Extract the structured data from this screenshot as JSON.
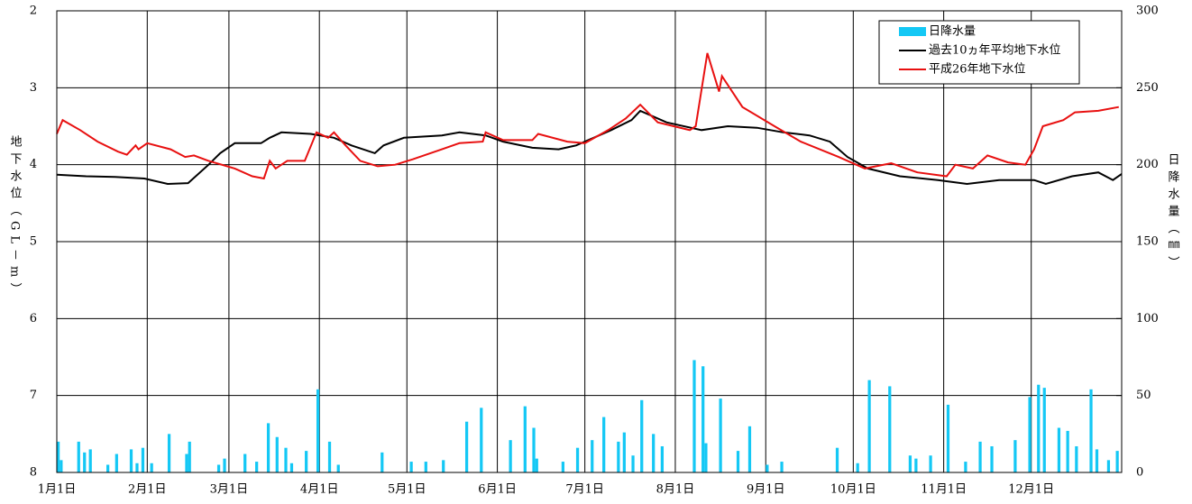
{
  "chart_data": {
    "type": "combo",
    "y_label": "地下水位（GL－m）",
    "y2_label": "日降水量（㎜）",
    "xlim": [
      0,
      365
    ],
    "xticks": [
      {
        "value": 0,
        "label": "1月1日"
      },
      {
        "value": 31,
        "label": "2月1日"
      },
      {
        "value": 59,
        "label": "3月1日"
      },
      {
        "value": 90,
        "label": "4月1日"
      },
      {
        "value": 120,
        "label": "5月1日"
      },
      {
        "value": 151,
        "label": "6月1日"
      },
      {
        "value": 181,
        "label": "7月1日"
      },
      {
        "value": 212,
        "label": "8月1日"
      },
      {
        "value": 243,
        "label": "9月1日"
      },
      {
        "value": 273,
        "label": "10月1日"
      },
      {
        "value": 304,
        "label": "11月1日"
      },
      {
        "value": 334,
        "label": "12月1日"
      }
    ],
    "ylim": [
      2,
      8
    ],
    "invert_y": true,
    "yticks": [
      2,
      3,
      4,
      5,
      6,
      7,
      8
    ],
    "y2lim": [
      0,
      300
    ],
    "y2ticks": [
      0,
      50,
      100,
      150,
      200,
      250,
      300
    ],
    "grid": true,
    "legend": "top-right",
    "series": [
      {
        "name": "日降水量",
        "type": "bar",
        "axis": "y2",
        "color": "#14c8f5",
        "x": [
          0,
          1,
          7,
          9,
          11,
          17,
          20,
          25,
          27,
          29,
          32,
          38,
          44,
          45,
          55,
          57,
          64,
          68,
          72,
          75,
          78,
          80,
          85,
          89,
          93,
          96,
          111,
          121,
          126,
          132,
          140,
          145,
          155,
          160,
          163,
          164,
          173,
          178,
          183,
          187,
          192,
          194,
          197,
          200,
          204,
          207,
          218,
          221,
          222,
          227,
          233,
          237,
          243,
          248,
          267,
          274,
          278,
          285,
          292,
          294,
          299,
          305,
          311,
          316,
          320,
          328,
          333,
          336,
          338,
          343,
          346,
          349,
          354,
          356,
          360,
          363
        ],
        "values": [
          20,
          8,
          20,
          13,
          15,
          5,
          12,
          15,
          6,
          16,
          6,
          25,
          12,
          20,
          5,
          9,
          12,
          7,
          32,
          23,
          16,
          6,
          14,
          54,
          20,
          5,
          13,
          7,
          7,
          8,
          33,
          42,
          21,
          43,
          29,
          9,
          7,
          16,
          21,
          36,
          20,
          26,
          11,
          47,
          25,
          17,
          73,
          69,
          19,
          48,
          14,
          30,
          5,
          7,
          16,
          6,
          60,
          56,
          11,
          9,
          11,
          44,
          7,
          20,
          17,
          21,
          49,
          57,
          55,
          29,
          27,
          17,
          54,
          15,
          8,
          14
        ]
      },
      {
        "name": "過去10ヵ年平均地下水位",
        "type": "line",
        "color": "#000000",
        "x": [
          0,
          10,
          20,
          30,
          38,
          45,
          52,
          56,
          61,
          70,
          73,
          77,
          87,
          95,
          101,
          109,
          112,
          119,
          132,
          138,
          147,
          153,
          163,
          172,
          178,
          184,
          190,
          197,
          200,
          209,
          221,
          230,
          240,
          249,
          258,
          265,
          271,
          278,
          289,
          302,
          312,
          323,
          335,
          339,
          348,
          357,
          362,
          365
        ],
        "values": [
          4.13,
          4.15,
          4.16,
          4.18,
          4.25,
          4.24,
          4.0,
          3.85,
          3.72,
          3.72,
          3.65,
          3.58,
          3.6,
          3.65,
          3.75,
          3.85,
          3.75,
          3.65,
          3.62,
          3.58,
          3.62,
          3.7,
          3.78,
          3.8,
          3.75,
          3.65,
          3.55,
          3.42,
          3.3,
          3.45,
          3.55,
          3.5,
          3.52,
          3.58,
          3.62,
          3.7,
          3.9,
          4.05,
          4.15,
          4.2,
          4.25,
          4.2,
          4.2,
          4.25,
          4.15,
          4.1,
          4.2,
          4.12
        ]
      },
      {
        "name": "平成26年地下水位",
        "type": "line",
        "color": "#e81010",
        "x": [
          0,
          2,
          8,
          14,
          21,
          24,
          27,
          28,
          31,
          39,
          44,
          47,
          52,
          61,
          67,
          71,
          73,
          75,
          79,
          85,
          89,
          93,
          95,
          99,
          104,
          110,
          116,
          122,
          132,
          138,
          146,
          147,
          153,
          163,
          165,
          175,
          181,
          189,
          195,
          200,
          206,
          217,
          219,
          223,
          227,
          228,
          235,
          246,
          255,
          268,
          277,
          286,
          295,
          305,
          308,
          314,
          319,
          326,
          332,
          335,
          338,
          345,
          349,
          357,
          364
        ],
        "values": [
          3.6,
          3.42,
          3.55,
          3.7,
          3.83,
          3.87,
          3.75,
          3.8,
          3.72,
          3.8,
          3.9,
          3.88,
          3.95,
          4.05,
          4.15,
          4.18,
          3.95,
          4.05,
          3.95,
          3.95,
          3.58,
          3.65,
          3.58,
          3.75,
          3.95,
          4.02,
          4.0,
          3.93,
          3.8,
          3.72,
          3.7,
          3.58,
          3.68,
          3.68,
          3.6,
          3.7,
          3.72,
          3.55,
          3.4,
          3.22,
          3.45,
          3.55,
          3.5,
          2.55,
          3.05,
          2.85,
          3.25,
          3.5,
          3.7,
          3.9,
          4.05,
          3.98,
          4.1,
          4.15,
          4.0,
          4.05,
          3.88,
          3.97,
          4.0,
          3.8,
          3.5,
          3.42,
          3.32,
          3.3,
          3.25
        ]
      }
    ]
  }
}
